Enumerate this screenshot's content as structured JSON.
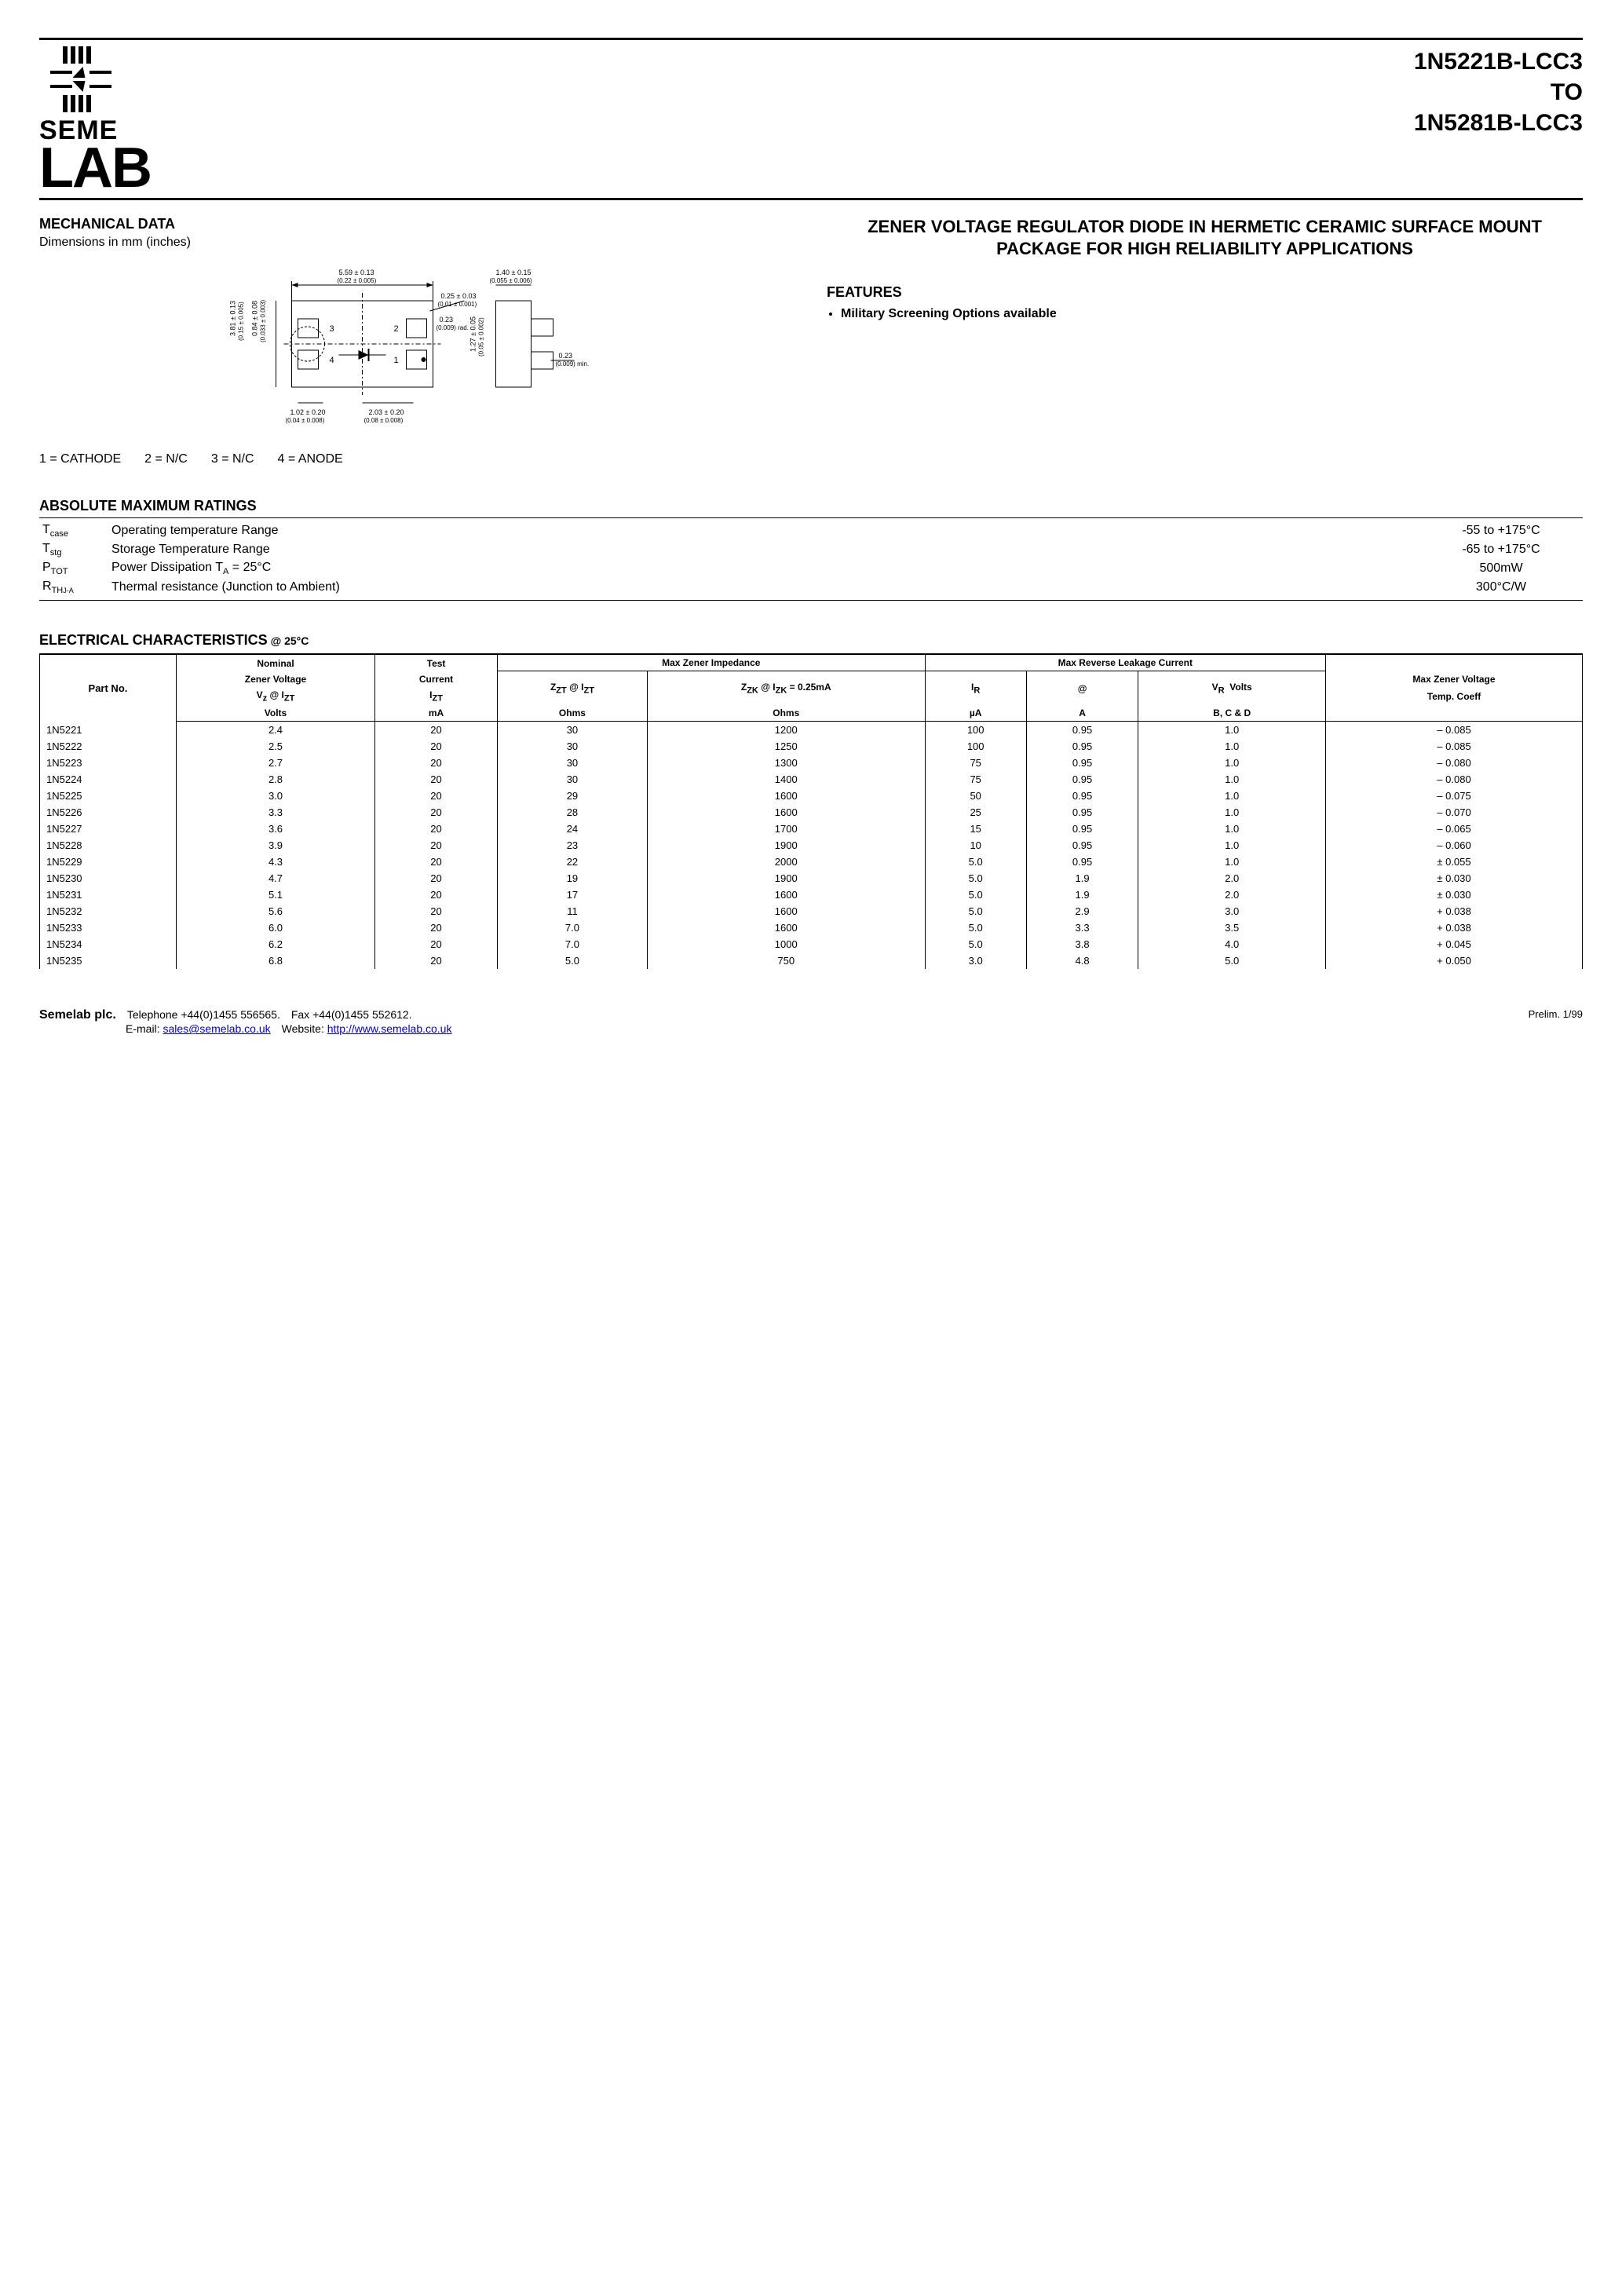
{
  "title": {
    "line1": "1N5221B-LCC3",
    "line2": "TO",
    "line3": "1N5281B-LCC3"
  },
  "logo": {
    "text1": "SEME",
    "text2": "LAB"
  },
  "mechanical": {
    "heading": "MECHANICAL DATA",
    "sub": "Dimensions in mm (inches)",
    "dims": {
      "top_w": "5.59 ± 0.13",
      "top_w_in": "(0.22 ± 0.005)",
      "side_w": "1.40 ± 0.15",
      "side_w_in": "(0.055 ± 0.006)",
      "notch": "0.25 ± 0.03",
      "notch_in": "(0.01 ± 0.001)",
      "rad": "0.23",
      "rad_in": "(0.009)",
      "rad_sfx": "rad.",
      "h1": "3.81 ± 0.13",
      "h1_in": "(0.15 ± 0.005)",
      "h2": "0.84 ± 0.08",
      "h2_in": "(0.05 ± 0.003)",
      "h3": "(0.033 ± 0.003)",
      "lead_h": "1.27 ± 0.05",
      "lead_h_in": "(0.05 ± 0.002)",
      "min": "0.23",
      "min_in": "(0.009)",
      "min_sfx": "min.",
      "bot1": "1.02 ± 0.20",
      "bot1_in": "(0.04 ± 0.008)",
      "bot2": "2.03 ± 0.20",
      "bot2_in": "(0.08 ± 0.008)"
    }
  },
  "pins": {
    "p1": "1 = CATHODE",
    "p2": "2 = N/C",
    "p3": "3 = N/C",
    "p4": "4 = ANODE"
  },
  "description": "ZENER VOLTAGE REGULATOR DIODE IN HERMETIC CERAMIC SURFACE MOUNT PACKAGE FOR HIGH RELIABILITY APPLICATIONS",
  "features": {
    "heading": "FEATURES",
    "items": [
      "Military Screening Options available"
    ]
  },
  "amr": {
    "heading": "ABSOLUTE MAXIMUM RATINGS",
    "rows": [
      {
        "sym": "T",
        "sub": "case",
        "desc": "Operating temperature Range",
        "val": "-55 to +175°C"
      },
      {
        "sym": "T",
        "sub": "stg",
        "desc": "Storage Temperature Range",
        "val": "-65 to +175°C"
      },
      {
        "sym": "P",
        "sub": "TOT",
        "desc": "Power Dissipation T",
        "desc_sub": "A",
        "desc_after": " = 25°C",
        "val": "500mW"
      },
      {
        "sym": "R",
        "sub": "TH",
        "sub2": "J-A",
        "desc": "Thermal resistance (Junction to Ambient)",
        "val": "300°C/W"
      }
    ]
  },
  "ec": {
    "heading": "ELECTRICAL CHARACTERISTICS",
    "at": "@ 25°C",
    "hdr": {
      "partno": "Part No.",
      "nominal": "Nominal",
      "zener_voltage": "Zener Voltage",
      "vz": "V",
      "vz_sub": "z",
      "at": "@",
      "izt_i": "I",
      "izt_sub": "ZT",
      "volts": "Volts",
      "test": "Test",
      "current": "Current",
      "ma": "mA",
      "max_imp": "Max Zener Impedance",
      "zzt": "Z",
      "zzt_sub": "ZT",
      "ohms": "Ohms",
      "zzk": "Z",
      "zzk_sub": "ZK",
      "izk_i": "I",
      "izk_sub": "ZK",
      "izk_val": " = 0.25mA",
      "max_leak": "Max Reverse Leakage Current",
      "ir": "I",
      "ir_sub": "R",
      "ua": "µA",
      "amp": "A",
      "vr": "V",
      "vr_sub": "R",
      "vr_volts": "Volts",
      "bcd": "B, C & D",
      "max_vz": "Max Zener Voltage",
      "temp_coeff": "Temp. Coeff"
    },
    "rows": [
      {
        "pn": "1N5221",
        "vz": "2.4",
        "izt": "20",
        "zzt": "30",
        "zzk": "1200",
        "ir": "100",
        "ira": "0.95",
        "vr": "1.0",
        "tc": "– 0.085"
      },
      {
        "pn": "1N5222",
        "vz": "2.5",
        "izt": "20",
        "zzt": "30",
        "zzk": "1250",
        "ir": "100",
        "ira": "0.95",
        "vr": "1.0",
        "tc": "– 0.085"
      },
      {
        "pn": "1N5223",
        "vz": "2.7",
        "izt": "20",
        "zzt": "30",
        "zzk": "1300",
        "ir": "75",
        "ira": "0.95",
        "vr": "1.0",
        "tc": "– 0.080"
      },
      {
        "pn": "1N5224",
        "vz": "2.8",
        "izt": "20",
        "zzt": "30",
        "zzk": "1400",
        "ir": "75",
        "ira": "0.95",
        "vr": "1.0",
        "tc": "– 0.080"
      },
      {
        "pn": "1N5225",
        "vz": "3.0",
        "izt": "20",
        "zzt": "29",
        "zzk": "1600",
        "ir": "50",
        "ira": "0.95",
        "vr": "1.0",
        "tc": "– 0.075"
      },
      {
        "pn": "1N5226",
        "vz": "3.3",
        "izt": "20",
        "zzt": "28",
        "zzk": "1600",
        "ir": "25",
        "ira": "0.95",
        "vr": "1.0",
        "tc": "– 0.070"
      },
      {
        "pn": "1N5227",
        "vz": "3.6",
        "izt": "20",
        "zzt": "24",
        "zzk": "1700",
        "ir": "15",
        "ira": "0.95",
        "vr": "1.0",
        "tc": "– 0.065"
      },
      {
        "pn": "1N5228",
        "vz": "3.9",
        "izt": "20",
        "zzt": "23",
        "zzk": "1900",
        "ir": "10",
        "ira": "0.95",
        "vr": "1.0",
        "tc": "– 0.060"
      },
      {
        "pn": "1N5229",
        "vz": "4.3",
        "izt": "20",
        "zzt": "22",
        "zzk": "2000",
        "ir": "5.0",
        "ira": "0.95",
        "vr": "1.0",
        "tc": "± 0.055"
      },
      {
        "pn": "1N5230",
        "vz": "4.7",
        "izt": "20",
        "zzt": "19",
        "zzk": "1900",
        "ir": "5.0",
        "ira": "1.9",
        "vr": "2.0",
        "tc": "± 0.030"
      },
      {
        "pn": "1N5231",
        "vz": "5.1",
        "izt": "20",
        "zzt": "17",
        "zzk": "1600",
        "ir": "5.0",
        "ira": "1.9",
        "vr": "2.0",
        "tc": "± 0.030"
      },
      {
        "pn": "1N5232",
        "vz": "5.6",
        "izt": "20",
        "zzt": "11",
        "zzk": "1600",
        "ir": "5.0",
        "ira": "2.9",
        "vr": "3.0",
        "tc": "+ 0.038"
      },
      {
        "pn": "1N5233",
        "vz": "6.0",
        "izt": "20",
        "zzt": "7.0",
        "zzk": "1600",
        "ir": "5.0",
        "ira": "3.3",
        "vr": "3.5",
        "tc": "+ 0.038"
      },
      {
        "pn": "1N5234",
        "vz": "6.2",
        "izt": "20",
        "zzt": "7.0",
        "zzk": "1000",
        "ir": "5.0",
        "ira": "3.8",
        "vr": "4.0",
        "tc": "+ 0.045"
      },
      {
        "pn": "1N5235",
        "vz": "6.8",
        "izt": "20",
        "zzt": "5.0",
        "zzk": "750",
        "ir": "3.0",
        "ira": "4.8",
        "vr": "5.0",
        "tc": "+ 0.050"
      }
    ]
  },
  "footer": {
    "company": "Semelab plc.",
    "tel_label": "Telephone",
    "tel": "+44(0)1455 556565.",
    "fax_label": "Fax",
    "fax": "+44(0)1455 552612.",
    "email_label": "E-mail:",
    "email": "sales@semelab.co.uk",
    "web_label": "Website:",
    "web": "http://www.semelab.co.uk",
    "rev": "Prelim. 1/99"
  }
}
